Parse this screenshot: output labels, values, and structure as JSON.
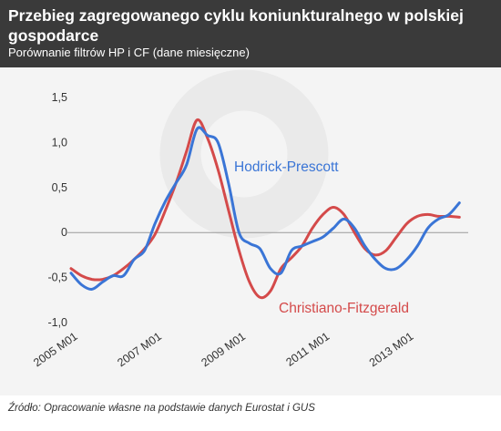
{
  "title": "Przebieg zagregowanego cyklu koniunkturalnego w polskiej gospodarce",
  "subtitle": "Porównanie filtrów HP i CF (dane miesięczne)",
  "source": "Źródło: Opracowanie własne na podstawie danych Eurostat i GUS",
  "colors": {
    "header_bg": "#3a3a3a",
    "plot_bg": "#f4f4f4",
    "hp": "#3a75d6",
    "cf": "#d44a4a",
    "axis_text": "#333333",
    "gridline": "#999999"
  },
  "chart_data": {
    "type": "line",
    "title": "Przebieg zagregowanego cyklu koniunkturalnego w polskiej gospodarce",
    "subtitle": "Porównanie filtrów HP i CF (dane miesięczne)",
    "xlabel": "",
    "ylabel": "",
    "xlim": [
      "2005-01",
      "2014-06"
    ],
    "ylim": [
      -1.0,
      1.5
    ],
    "x_ticks": [
      "2005 M01",
      "2007 M01",
      "2009 M01",
      "2011 M01",
      "2013 M01"
    ],
    "y_ticks": [
      "-1,0",
      "-0,5",
      "0",
      "0,5",
      "1,0",
      "1,5"
    ],
    "y_tick_values": [
      -1.0,
      -0.5,
      0,
      0.5,
      1.0,
      1.5
    ],
    "zero_line": true,
    "series": [
      {
        "name": "Hodrick-Prescott",
        "color": "#3a75d6",
        "points": [
          [
            "2005-01",
            -0.45
          ],
          [
            "2005-04",
            -0.58
          ],
          [
            "2005-07",
            -0.63
          ],
          [
            "2005-10",
            -0.55
          ],
          [
            "2006-01",
            -0.48
          ],
          [
            "2006-04",
            -0.48
          ],
          [
            "2006-07",
            -0.3
          ],
          [
            "2006-10",
            -0.2
          ],
          [
            "2007-01",
            0.1
          ],
          [
            "2007-04",
            0.35
          ],
          [
            "2007-07",
            0.55
          ],
          [
            "2007-10",
            0.75
          ],
          [
            "2008-01",
            1.15
          ],
          [
            "2008-04",
            1.08
          ],
          [
            "2008-07",
            1.0
          ],
          [
            "2008-10",
            0.55
          ],
          [
            "2009-01",
            0.0
          ],
          [
            "2009-04",
            -0.12
          ],
          [
            "2009-07",
            -0.18
          ],
          [
            "2009-10",
            -0.4
          ],
          [
            "2010-01",
            -0.45
          ],
          [
            "2010-04",
            -0.2
          ],
          [
            "2010-07",
            -0.15
          ],
          [
            "2010-10",
            -0.1
          ],
          [
            "2011-01",
            -0.05
          ],
          [
            "2011-04",
            0.05
          ],
          [
            "2011-07",
            0.15
          ],
          [
            "2011-10",
            0.05
          ],
          [
            "2012-01",
            -0.15
          ],
          [
            "2012-04",
            -0.3
          ],
          [
            "2012-07",
            -0.4
          ],
          [
            "2012-10",
            -0.4
          ],
          [
            "2013-01",
            -0.3
          ],
          [
            "2013-04",
            -0.15
          ],
          [
            "2013-07",
            0.05
          ],
          [
            "2013-10",
            0.15
          ],
          [
            "2014-01",
            0.2
          ],
          [
            "2014-04",
            0.33
          ]
        ]
      },
      {
        "name": "Christiano-Fitzgerald",
        "color": "#d44a4a",
        "points": [
          [
            "2005-01",
            -0.4
          ],
          [
            "2005-04",
            -0.48
          ],
          [
            "2005-07",
            -0.52
          ],
          [
            "2005-10",
            -0.52
          ],
          [
            "2006-01",
            -0.48
          ],
          [
            "2006-04",
            -0.4
          ],
          [
            "2006-07",
            -0.3
          ],
          [
            "2006-10",
            -0.18
          ],
          [
            "2007-01",
            -0.02
          ],
          [
            "2007-04",
            0.25
          ],
          [
            "2007-07",
            0.55
          ],
          [
            "2007-10",
            0.9
          ],
          [
            "2008-01",
            1.25
          ],
          [
            "2008-04",
            1.05
          ],
          [
            "2008-07",
            0.7
          ],
          [
            "2008-10",
            0.25
          ],
          [
            "2009-01",
            -0.2
          ],
          [
            "2009-04",
            -0.55
          ],
          [
            "2009-07",
            -0.72
          ],
          [
            "2009-10",
            -0.65
          ],
          [
            "2010-01",
            -0.4
          ],
          [
            "2010-04",
            -0.28
          ],
          [
            "2010-07",
            -0.15
          ],
          [
            "2010-10",
            0.05
          ],
          [
            "2011-01",
            0.2
          ],
          [
            "2011-04",
            0.28
          ],
          [
            "2011-07",
            0.2
          ],
          [
            "2011-10",
            0.0
          ],
          [
            "2012-01",
            -0.18
          ],
          [
            "2012-04",
            -0.25
          ],
          [
            "2012-07",
            -0.2
          ],
          [
            "2012-10",
            -0.05
          ],
          [
            "2013-01",
            0.1
          ],
          [
            "2013-04",
            0.18
          ],
          [
            "2013-07",
            0.2
          ],
          [
            "2013-10",
            0.18
          ],
          [
            "2014-01",
            0.18
          ],
          [
            "2014-04",
            0.17
          ]
        ]
      }
    ]
  }
}
